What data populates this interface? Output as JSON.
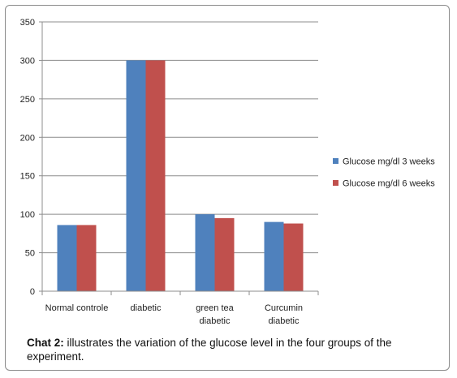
{
  "chart_data": {
    "type": "bar",
    "categories": [
      [
        "Normal controle"
      ],
      [
        "diabetic"
      ],
      [
        "green tea",
        "diabetic"
      ],
      [
        "Curcumin",
        "diabetic"
      ]
    ],
    "series": [
      {
        "name": "Glucose mg/dl 3 weeks",
        "values": [
          86,
          300,
          100,
          90
        ],
        "color": "#4f81bd"
      },
      {
        "name": "Glucose mg/dl 6 weeks",
        "values": [
          86,
          300,
          95,
          88
        ],
        "color": "#c0504d"
      }
    ],
    "ylim": [
      0,
      350
    ],
    "yticks": [
      "0",
      "50",
      "100",
      "150",
      "200",
      "250",
      "300",
      "350"
    ],
    "grid": true,
    "legend_position": "right"
  },
  "caption": {
    "label": "Chat 2:",
    "text": " illustrates the variation of the glucose level in the four groups of the experiment."
  }
}
